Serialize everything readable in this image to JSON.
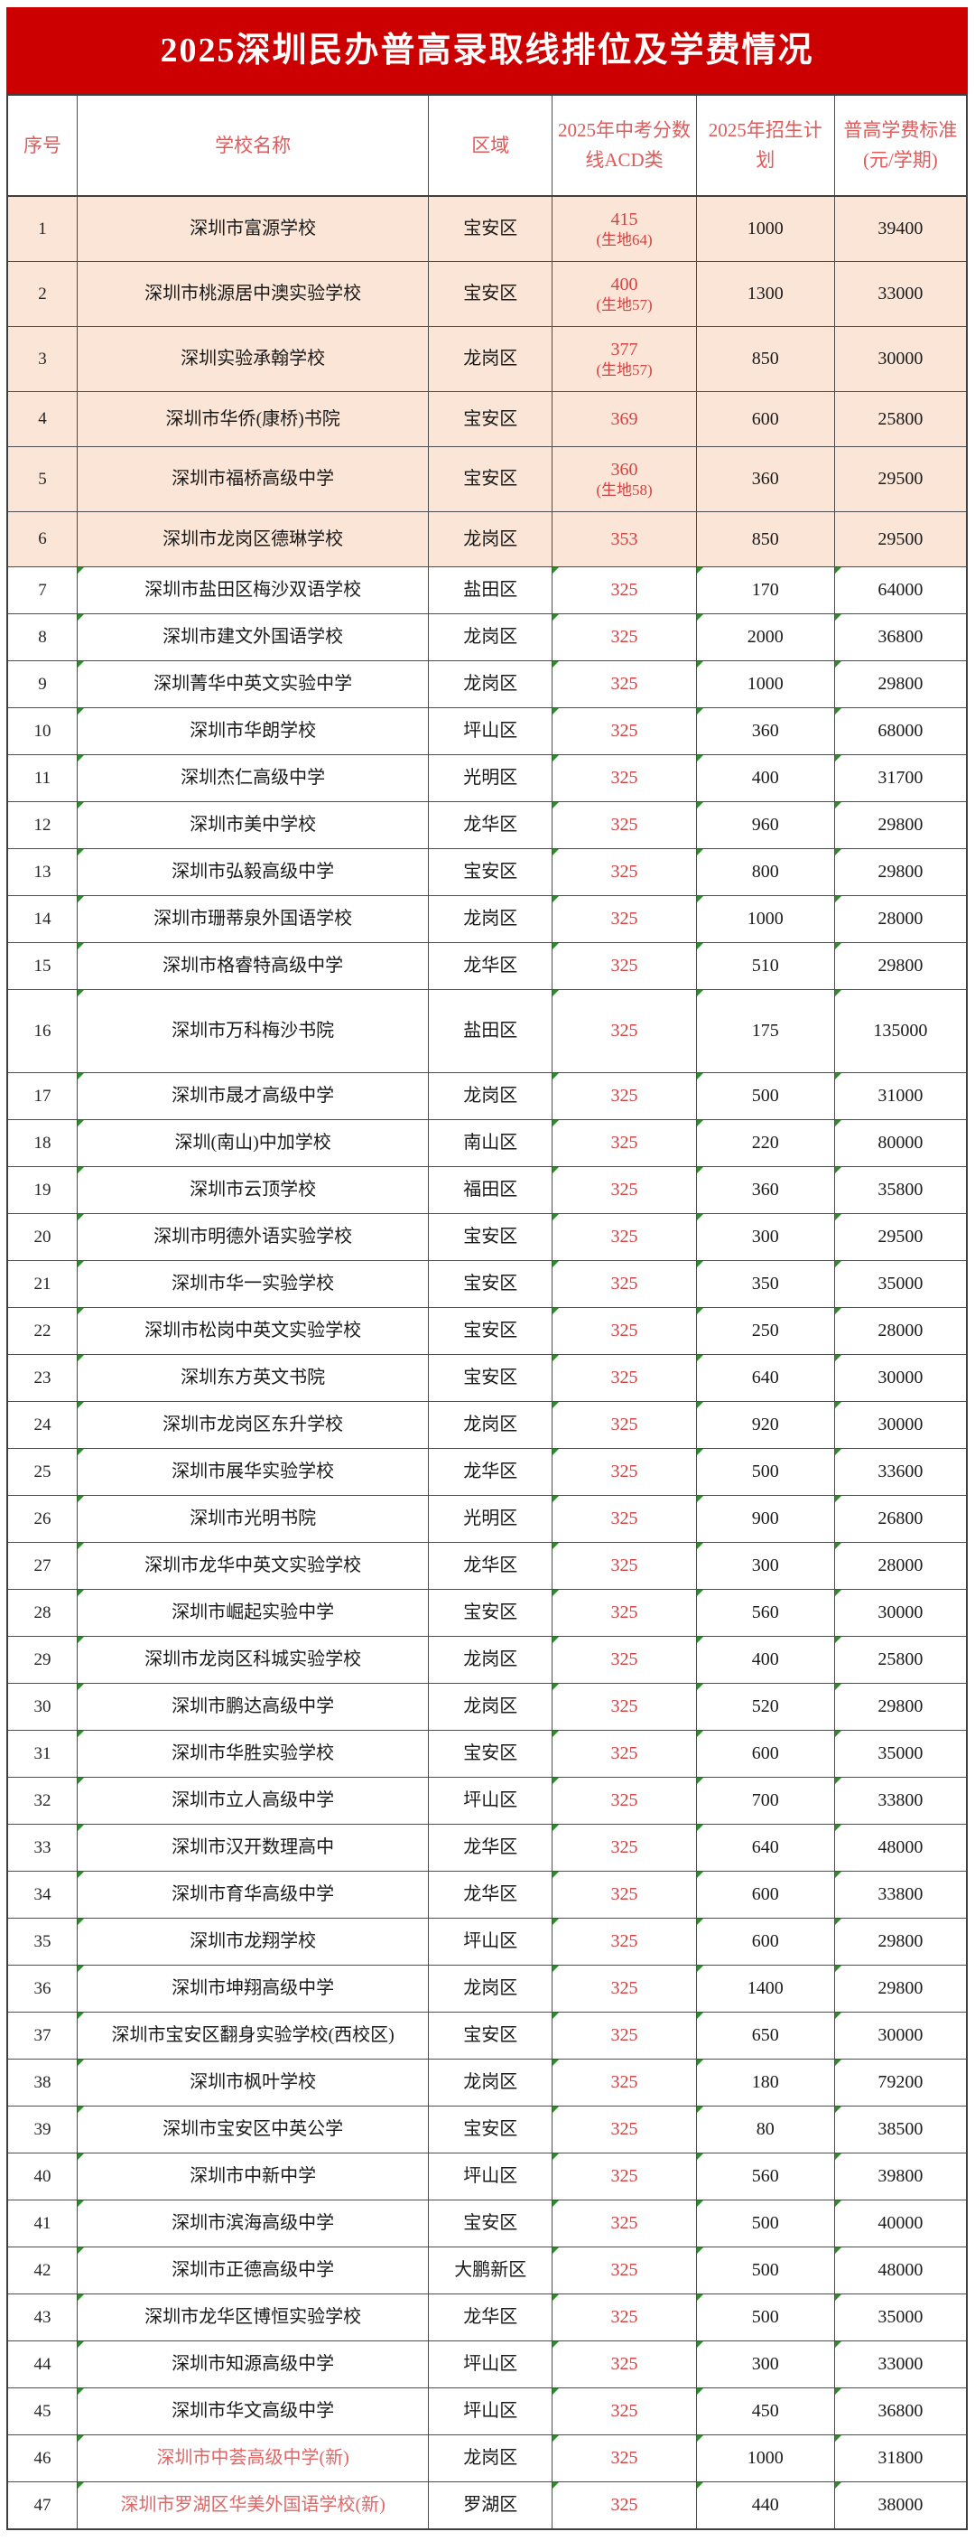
{
  "title": {
    "text": "2025深圳民办普高录取线排位及学费情况",
    "bg_color": "#cc0000",
    "text_color": "#ffffff"
  },
  "colors": {
    "header_text": "#de5b5b",
    "score_red": "#cf4444",
    "new_school_red": "#e06666",
    "highlight_row_bg": "#fbe5d6",
    "triangle_green": "#2e8b2e"
  },
  "table": {
    "columns": [
      {
        "key": "no",
        "label": "序号"
      },
      {
        "key": "name",
        "label": "学校名称"
      },
      {
        "key": "region",
        "label": "区域"
      },
      {
        "key": "score",
        "label": "2025年中考分数线ACD类"
      },
      {
        "key": "plan",
        "label": "2025年招生计划"
      },
      {
        "key": "fee",
        "label": "普高学费标准(元/学期)"
      }
    ],
    "rows": [
      {
        "no": "1",
        "name": "深圳市富源学校",
        "region": "宝安区",
        "score": "415",
        "note": "(生地64)",
        "plan": "1000",
        "fee": "39400",
        "peach": true,
        "notetall": true
      },
      {
        "no": "2",
        "name": "深圳市桃源居中澳实验学校",
        "region": "宝安区",
        "score": "400",
        "note": "(生地57)",
        "plan": "1300",
        "fee": "33000",
        "peach": true
      },
      {
        "no": "3",
        "name": "深圳实验承翰学校",
        "region": "龙岗区",
        "score": "377",
        "note": "(生地57)",
        "plan": "850",
        "fee": "30000",
        "peach": true
      },
      {
        "no": "4",
        "name": "深圳市华侨(康桥)书院",
        "region": "宝安区",
        "score": "369",
        "note": "",
        "plan": "600",
        "fee": "25800",
        "peach": true,
        "md": true
      },
      {
        "no": "5",
        "name": "深圳市福桥高级中学",
        "region": "宝安区",
        "score": "360",
        "note": "(生地58)",
        "plan": "360",
        "fee": "29500",
        "peach": true
      },
      {
        "no": "6",
        "name": "深圳市龙岗区德琳学校",
        "region": "龙岗区",
        "score": "353",
        "note": "",
        "plan": "850",
        "fee": "29500",
        "peach": true,
        "md": true
      },
      {
        "no": "7",
        "name": "深圳市盐田区梅沙双语学校",
        "region": "盐田区",
        "score": "325",
        "note": "",
        "plan": "170",
        "fee": "64000",
        "tri": true
      },
      {
        "no": "8",
        "name": "深圳市建文外国语学校",
        "region": "龙岗区",
        "score": "325",
        "note": "",
        "plan": "2000",
        "fee": "36800",
        "tri": true
      },
      {
        "no": "9",
        "name": "深圳菁华中英文实验中学",
        "region": "龙岗区",
        "score": "325",
        "note": "",
        "plan": "1000",
        "fee": "29800",
        "tri": true
      },
      {
        "no": "10",
        "name": "深圳市华朗学校",
        "region": "坪山区",
        "score": "325",
        "note": "",
        "plan": "360",
        "fee": "68000",
        "tri": true
      },
      {
        "no": "11",
        "name": "深圳杰仁高级中学",
        "region": "光明区",
        "score": "325",
        "note": "",
        "plan": "400",
        "fee": "31700",
        "tri": true
      },
      {
        "no": "12",
        "name": "深圳市美中学校",
        "region": "龙华区",
        "score": "325",
        "note": "",
        "plan": "960",
        "fee": "29800",
        "tri": true
      },
      {
        "no": "13",
        "name": "深圳市弘毅高级中学",
        "region": "宝安区",
        "score": "325",
        "note": "",
        "plan": "800",
        "fee": "29800",
        "tri": true
      },
      {
        "no": "14",
        "name": "深圳市珊蒂泉外国语学校",
        "region": "龙岗区",
        "score": "325",
        "note": "",
        "plan": "1000",
        "fee": "28000",
        "tri": true
      },
      {
        "no": "15",
        "name": "深圳市格睿特高级中学",
        "region": "龙华区",
        "score": "325",
        "note": "",
        "plan": "510",
        "fee": "29800",
        "tri": true
      },
      {
        "no": "16",
        "name": "深圳市万科梅沙书院",
        "region": "盐田区",
        "score": "325",
        "note": "",
        "plan": "175",
        "fee": "135000",
        "tri": true,
        "tall": true
      },
      {
        "no": "17",
        "name": "深圳市晟才高级中学",
        "region": "龙岗区",
        "score": "325",
        "note": "",
        "plan": "500",
        "fee": "31000",
        "tri": true
      },
      {
        "no": "18",
        "name": "深圳(南山)中加学校",
        "region": "南山区",
        "score": "325",
        "note": "",
        "plan": "220",
        "fee": "80000",
        "tri": true
      },
      {
        "no": "19",
        "name": "深圳市云顶学校",
        "region": "福田区",
        "score": "325",
        "note": "",
        "plan": "360",
        "fee": "35800",
        "tri": true
      },
      {
        "no": "20",
        "name": "深圳市明德外语实验学校",
        "region": "宝安区",
        "score": "325",
        "note": "",
        "plan": "300",
        "fee": "29500",
        "tri": true
      },
      {
        "no": "21",
        "name": "深圳市华一实验学校",
        "region": "宝安区",
        "score": "325",
        "note": "",
        "plan": "350",
        "fee": "35000",
        "tri": true
      },
      {
        "no": "22",
        "name": "深圳市松岗中英文实验学校",
        "region": "宝安区",
        "score": "325",
        "note": "",
        "plan": "250",
        "fee": "28000",
        "tri": true
      },
      {
        "no": "23",
        "name": "深圳东方英文书院",
        "region": "宝安区",
        "score": "325",
        "note": "",
        "plan": "640",
        "fee": "30000",
        "tri": true
      },
      {
        "no": "24",
        "name": "深圳市龙岗区东升学校",
        "region": "龙岗区",
        "score": "325",
        "note": "",
        "plan": "920",
        "fee": "30000",
        "tri": true
      },
      {
        "no": "25",
        "name": "深圳市展华实验学校",
        "region": "龙华区",
        "score": "325",
        "note": "",
        "plan": "500",
        "fee": "33600",
        "tri": true
      },
      {
        "no": "26",
        "name": "深圳市光明书院",
        "region": "光明区",
        "score": "325",
        "note": "",
        "plan": "900",
        "fee": "26800",
        "tri": true
      },
      {
        "no": "27",
        "name": "深圳市龙华中英文实验学校",
        "region": "龙华区",
        "score": "325",
        "note": "",
        "plan": "300",
        "fee": "28000",
        "tri": true
      },
      {
        "no": "28",
        "name": "深圳市崛起实验中学",
        "region": "宝安区",
        "score": "325",
        "note": "",
        "plan": "560",
        "fee": "30000",
        "tri": true
      },
      {
        "no": "29",
        "name": "深圳市龙岗区科城实验学校",
        "region": "龙岗区",
        "score": "325",
        "note": "",
        "plan": "400",
        "fee": "25800",
        "tri": true
      },
      {
        "no": "30",
        "name": "深圳市鹏达高级中学",
        "region": "龙岗区",
        "score": "325",
        "note": "",
        "plan": "520",
        "fee": "29800",
        "tri": true
      },
      {
        "no": "31",
        "name": "深圳市华胜实验学校",
        "region": "宝安区",
        "score": "325",
        "note": "",
        "plan": "600",
        "fee": "35000",
        "tri": true
      },
      {
        "no": "32",
        "name": "深圳市立人高级中学",
        "region": "坪山区",
        "score": "325",
        "note": "",
        "plan": "700",
        "fee": "33800",
        "tri": true
      },
      {
        "no": "33",
        "name": "深圳市汉开数理高中",
        "region": "龙华区",
        "score": "325",
        "note": "",
        "plan": "640",
        "fee": "48000",
        "tri": true
      },
      {
        "no": "34",
        "name": "深圳市育华高级中学",
        "region": "龙华区",
        "score": "325",
        "note": "",
        "plan": "600",
        "fee": "33800",
        "tri": true
      },
      {
        "no": "35",
        "name": "深圳市龙翔学校",
        "region": "坪山区",
        "score": "325",
        "note": "",
        "plan": "600",
        "fee": "29800",
        "tri": true
      },
      {
        "no": "36",
        "name": "深圳市坤翔高级中学",
        "region": "龙岗区",
        "score": "325",
        "note": "",
        "plan": "1400",
        "fee": "29800",
        "tri": true
      },
      {
        "no": "37",
        "name": "深圳市宝安区翻身实验学校(西校区)",
        "region": "宝安区",
        "score": "325",
        "note": "",
        "plan": "650",
        "fee": "30000",
        "tri": true
      },
      {
        "no": "38",
        "name": "深圳市枫叶学校",
        "region": "龙岗区",
        "score": "325",
        "note": "",
        "plan": "180",
        "fee": "79200",
        "tri": true
      },
      {
        "no": "39",
        "name": "深圳市宝安区中英公学",
        "region": "宝安区",
        "score": "325",
        "note": "",
        "plan": "80",
        "fee": "38500",
        "tri": true
      },
      {
        "no": "40",
        "name": "深圳市中新中学",
        "region": "坪山区",
        "score": "325",
        "note": "",
        "plan": "560",
        "fee": "39800",
        "tri": true
      },
      {
        "no": "41",
        "name": "深圳市滨海高级中学",
        "region": "宝安区",
        "score": "325",
        "note": "",
        "plan": "500",
        "fee": "40000",
        "tri": true
      },
      {
        "no": "42",
        "name": "深圳市正德高级中学",
        "region": "大鹏新区",
        "score": "325",
        "note": "",
        "plan": "500",
        "fee": "48000",
        "tri": true
      },
      {
        "no": "43",
        "name": "深圳市龙华区博恒实验学校",
        "region": "龙华区",
        "score": "325",
        "note": "",
        "plan": "500",
        "fee": "35000",
        "tri": true
      },
      {
        "no": "44",
        "name": "深圳市知源高级中学",
        "region": "坪山区",
        "score": "325",
        "note": "",
        "plan": "300",
        "fee": "33000",
        "tri": true
      },
      {
        "no": "45",
        "name": "深圳市华文高级中学",
        "region": "坪山区",
        "score": "325",
        "note": "",
        "plan": "450",
        "fee": "36800",
        "tri": true
      },
      {
        "no": "46",
        "name": "深圳市中荟高级中学(新)",
        "region": "龙岗区",
        "score": "325",
        "note": "",
        "plan": "1000",
        "fee": "31800",
        "tri": true,
        "red": true
      },
      {
        "no": "47",
        "name": "深圳市罗湖区华美外国语学校(新)",
        "region": "罗湖区",
        "score": "325",
        "note": "",
        "plan": "440",
        "fee": "38000",
        "tri": true,
        "red": true
      }
    ]
  }
}
